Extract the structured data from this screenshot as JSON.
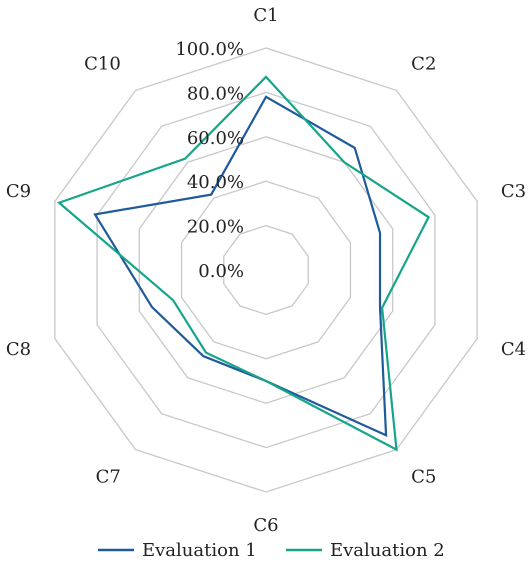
{
  "chart_data": {
    "type": "radar",
    "title": "",
    "categories": [
      "C1",
      "C2",
      "C3",
      "C4",
      "C5",
      "C6",
      "C7",
      "C8",
      "C9",
      "C10"
    ],
    "tick_labels": [
      "0.0%",
      "20.0%",
      "40.0%",
      "60.0%",
      "80.0%",
      "100.0%"
    ],
    "ylim": [
      0,
      100
    ],
    "grid": true,
    "legend_position": "bottom",
    "series": [
      {
        "name": "Evaluation 1",
        "color": "#1f5a9c",
        "values": [
          78,
          68,
          54,
          54,
          92,
          50,
          48,
          54,
          81,
          42
        ]
      },
      {
        "name": "Evaluation 2",
        "color": "#17a589",
        "values": [
          87,
          60,
          77,
          55,
          100,
          50,
          46,
          44,
          98,
          62
        ]
      }
    ],
    "colors": {
      "grid": "#c8c8c8"
    }
  }
}
